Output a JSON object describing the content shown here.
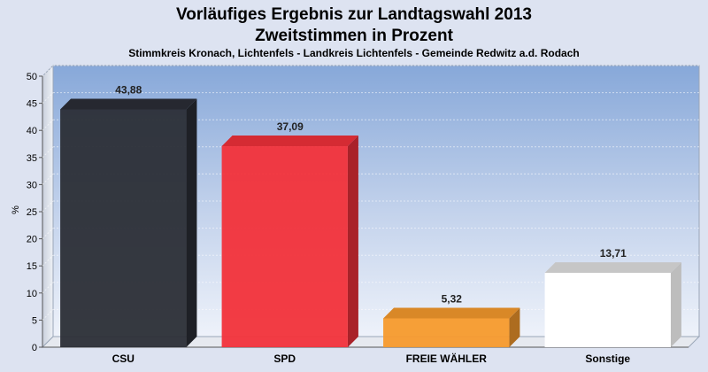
{
  "chart_data": {
    "type": "bar",
    "title": "Vorläufiges Ergebnis zur Landtagswahl 2013",
    "subtitle": "Zweitstimmen in Prozent",
    "subsubtitle": "Stimmkreis Kronach, Lichtenfels - Landkreis Lichtenfels - Gemeinde Redwitz a.d. Rodach",
    "ylabel": "%",
    "xlabel": "",
    "ylim": [
      0,
      50
    ],
    "yticks": [
      0,
      5,
      10,
      15,
      20,
      25,
      30,
      35,
      40,
      45,
      50
    ],
    "grid": true,
    "legend": "none",
    "categories": [
      "CSU",
      "SPD",
      "FREIE WÄHLER",
      "Sonstige"
    ],
    "values": [
      43.88,
      37.09,
      5.32,
      13.71
    ],
    "value_labels": [
      "43,88",
      "37,09",
      "5,32",
      "13,71"
    ],
    "colors": [
      "#2b2e36",
      "#f2313a",
      "#f79a2c",
      "#ffffff"
    ]
  }
}
